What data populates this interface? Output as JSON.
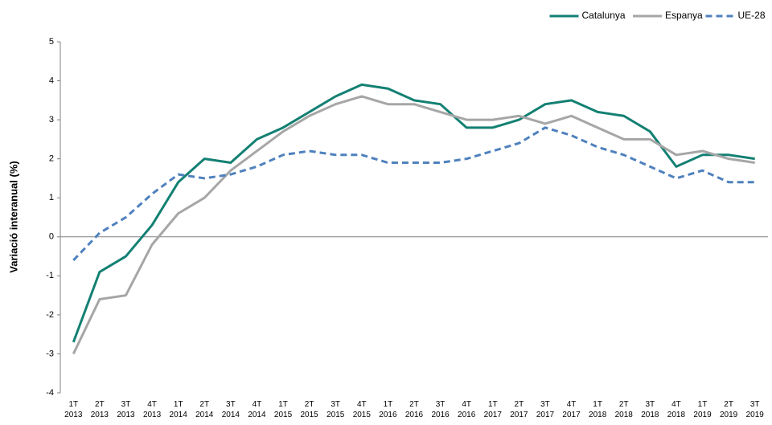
{
  "chart_data": {
    "type": "line",
    "ylabel": "Variació interanual (%)",
    "categories": [
      [
        "1T",
        "2013"
      ],
      [
        "2T",
        "2013"
      ],
      [
        "3T",
        "2013"
      ],
      [
        "4T",
        "2013"
      ],
      [
        "1T",
        "2014"
      ],
      [
        "2T",
        "2014"
      ],
      [
        "3T",
        "2014"
      ],
      [
        "4T",
        "2014"
      ],
      [
        "1T",
        "2015"
      ],
      [
        "2T",
        "2015"
      ],
      [
        "3T",
        "2015"
      ],
      [
        "4T",
        "2015"
      ],
      [
        "1T",
        "2016"
      ],
      [
        "2T",
        "2016"
      ],
      [
        "3T",
        "2016"
      ],
      [
        "4T",
        "2016"
      ],
      [
        "1T",
        "2017"
      ],
      [
        "2T",
        "2017"
      ],
      [
        "3T",
        "2017"
      ],
      [
        "4T",
        "2017"
      ],
      [
        "1T",
        "2018"
      ],
      [
        "2T",
        "2018"
      ],
      [
        "3T",
        "2018"
      ],
      [
        "4T",
        "2018"
      ],
      [
        "1T",
        "2019"
      ],
      [
        "2T",
        "2019"
      ],
      [
        "3T",
        "2019"
      ]
    ],
    "series": [
      {
        "name": "Catalunya",
        "color": "#138073",
        "dashed": false,
        "values": [
          -2.7,
          -0.9,
          -0.5,
          0.3,
          1.4,
          2.0,
          1.9,
          2.5,
          2.8,
          3.2,
          3.6,
          3.9,
          3.8,
          3.5,
          3.4,
          2.8,
          2.8,
          3.0,
          3.4,
          3.5,
          3.2,
          3.1,
          2.7,
          1.8,
          2.1,
          2.1,
          2.0
        ]
      },
      {
        "name": "Espanya",
        "color": "#a6a6a6",
        "dashed": false,
        "values": [
          -3.0,
          -1.6,
          -1.5,
          -0.2,
          0.6,
          1.0,
          1.7,
          2.2,
          2.7,
          3.1,
          3.4,
          3.6,
          3.4,
          3.4,
          3.2,
          3.0,
          3.0,
          3.1,
          2.9,
          3.1,
          2.8,
          2.5,
          2.5,
          2.1,
          2.2,
          2.0,
          1.9
        ]
      },
      {
        "name": "UE-28",
        "color": "#4f81bd",
        "dashed": true,
        "values": [
          -0.6,
          0.1,
          0.5,
          1.1,
          1.6,
          1.5,
          1.6,
          1.8,
          2.1,
          2.2,
          2.1,
          2.1,
          1.9,
          1.9,
          1.9,
          2.0,
          2.2,
          2.4,
          2.8,
          2.6,
          2.3,
          2.1,
          1.8,
          1.5,
          1.7,
          1.4,
          1.4
        ]
      }
    ],
    "ylim": [
      -4,
      5
    ],
    "yticks": [
      -4,
      -3,
      -2,
      -1,
      0,
      1,
      2,
      3,
      4,
      5
    ],
    "grid": false,
    "legend": "top-right"
  }
}
